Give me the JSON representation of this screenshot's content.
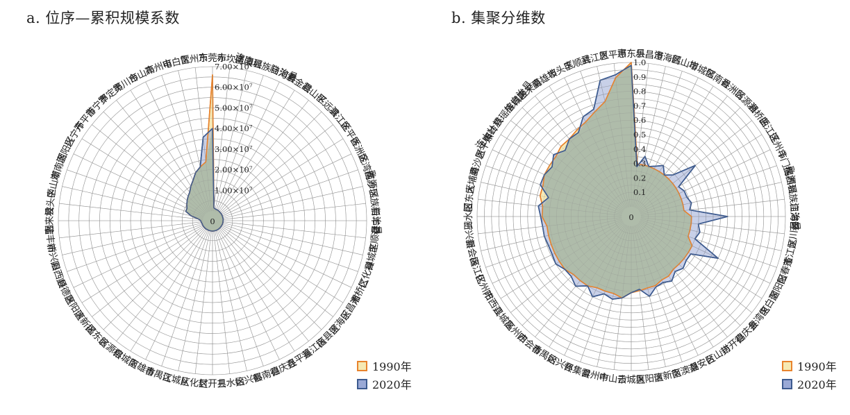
{
  "colors": {
    "s1990_line": "#e8832d",
    "s1990_fill": "#f6e9b3",
    "s2020_line": "#3c5a8f",
    "s2020_fill": "#9aa9d6",
    "overlap_fill": "#a8b8a0"
  },
  "legend": {
    "s1990": "1990年",
    "s2020": "2020年"
  },
  "chart_data": [
    {
      "type": "radar",
      "title": "a. 位序—累积规模系数",
      "center_label": "0",
      "rlim": [
        0,
        70000000
      ],
      "ticks": [
        "1.00×10⁷",
        "2.00×10⁷",
        "3.00×10⁷",
        "4.00×10⁷",
        "5.00×10⁷",
        "6.00×10⁷",
        "7.00×10⁷"
      ],
      "tick_values": [
        10000000,
        20000000,
        30000000,
        40000000,
        50000000,
        60000000,
        70000000
      ],
      "categories": [
        "东莞市",
        "赤坎区",
        "南澳县",
        "连南瑶族自治县",
        "陆河县",
        "紫金县",
        "霞山区",
        "平远县",
        "滨江区",
        "金平区",
        "香洲区",
        "金湾区",
        "南沙区",
        "乳源瑶族自治县",
        "新丰县",
        "丰顺县",
        "禅城区",
        "仁化县",
        "湘桥区",
        "乐昌市",
        "澄海区",
        "梅县区",
        "蓬江区",
        "连平县",
        "德庆县",
        "郁南县",
        "始兴县",
        "三水区",
        "封开县",
        "从化区",
        "江城区",
        "番禺区",
        "南雄市",
        "榕城区",
        "翁源县",
        "揭东区",
        "清新区",
        "惠阳区",
        "顺德区",
        "阳西县",
        "新兴县",
        "陆丰市",
        "惠来县",
        "坡头区",
        "中山市",
        "潮南区",
        "潮阳区",
        "兴宁市",
        "开平市",
        "普宁市",
        "罗定市",
        "吴川市",
        "台山市",
        "高州市",
        "电白区",
        "雷州市"
      ],
      "series": [
        {
          "name": "1990年",
          "values": [
            66000000,
            1500000,
            1200000,
            1000000,
            1000000,
            900000,
            800000,
            700000,
            700000,
            600000,
            600000,
            500000,
            500000,
            500000,
            400000,
            400000,
            400000,
            400000,
            300000,
            300000,
            300000,
            300000,
            300000,
            300000,
            300000,
            300000,
            300000,
            300000,
            300000,
            300000,
            300000,
            300000,
            300000,
            300000,
            400000,
            400000,
            400000,
            500000,
            500000,
            500000,
            600000,
            800000,
            1000000,
            2000000,
            6000000,
            9000000,
            9000000,
            10000000,
            11000000,
            12000000,
            13000000,
            15000000,
            17000000,
            20000000,
            22000000,
            24000000
          ]
        },
        {
          "name": "2020年",
          "values": [
            40000000,
            1500000,
            1200000,
            1000000,
            1000000,
            900000,
            800000,
            700000,
            700000,
            600000,
            600000,
            500000,
            500000,
            500000,
            400000,
            400000,
            400000,
            400000,
            300000,
            300000,
            300000,
            300000,
            300000,
            300000,
            300000,
            300000,
            300000,
            300000,
            300000,
            300000,
            300000,
            300000,
            300000,
            300000,
            400000,
            400000,
            400000,
            500000,
            500000,
            500000,
            600000,
            800000,
            1000000,
            2000000,
            6000000,
            9000000,
            9000000,
            10000000,
            11000000,
            12000000,
            13000000,
            15000000,
            17000000,
            20000000,
            22000000,
            36000000
          ]
        }
      ]
    },
    {
      "type": "radar",
      "title": "b. 集聚分维数",
      "center_label": "0",
      "rlim": [
        0,
        1.0
      ],
      "ticks": [
        "0.1",
        "0.2",
        "0.3",
        "0.4",
        "0.5",
        "0.6",
        "0.7",
        "0.8",
        "0.9",
        "1.0"
      ],
      "tick_values": [
        0.1,
        0.2,
        0.3,
        0.4,
        0.5,
        0.6,
        0.7,
        0.8,
        0.9,
        1.0
      ],
      "categories": [
        "惠东县",
        "乐昌市",
        "澄海区",
        "鹤山市",
        "增城区",
        "郁南县",
        "香洲区",
        "翁源县",
        "湘桥区",
        "曲江区",
        "连州市",
        "斗门区",
        "揭西县",
        "乳源瑶族自治县",
        "江海区",
        "龙川县",
        "蓬江区",
        "阳春市",
        "潮阳区",
        "电白区",
        "金湾区",
        "德庆县",
        "封开县",
        "台山市",
        "潮安区",
        "南澳县",
        "清新区",
        "惠阳区",
        "云城区",
        "中山市",
        "雷州市",
        "怀集县",
        "始兴县",
        "番禺区",
        "四会市",
        "高州市",
        "江城区",
        "阳西县",
        "化州市",
        "梅江区",
        "新会区",
        "新兴县",
        "三水区",
        "阳东区",
        "大埔县",
        "南沙区",
        "恩平市",
        "蕉岭县",
        "连山壮族瑶族自治县",
        "榕城区",
        "惠来县",
        "南雄市",
        "坡头区",
        "丰顺县",
        "武江区",
        "恩平市"
      ],
      "series": [
        {
          "name": "1990年",
          "values": [
            1.0,
            0.3,
            0.3,
            0.3,
            0.3,
            0.3,
            0.3,
            0.3,
            0.3,
            0.3,
            0.3,
            0.3,
            0.3,
            0.3,
            0.35,
            0.35,
            0.35,
            0.35,
            0.4,
            0.4,
            0.4,
            0.4,
            0.4,
            0.42,
            0.42,
            0.44,
            0.44,
            0.45,
            0.46,
            0.5,
            0.48,
            0.48,
            0.48,
            0.5,
            0.5,
            0.5,
            0.52,
            0.52,
            0.52,
            0.52,
            0.52,
            0.52,
            0.55,
            0.55,
            0.58,
            0.58,
            0.6,
            0.6,
            0.6,
            0.62,
            0.62,
            0.64,
            0.66,
            0.7,
            0.75,
            0.9
          ]
        },
        {
          "name": "2020年",
          "values": [
            0.98,
            0.28,
            0.36,
            0.3,
            0.32,
            0.35,
            0.3,
            0.34,
            0.5,
            0.32,
            0.34,
            0.34,
            0.36,
            0.34,
            0.6,
            0.4,
            0.42,
            0.4,
            0.6,
            0.42,
            0.42,
            0.44,
            0.42,
            0.46,
            0.44,
            0.45,
            0.5,
            0.44,
            0.46,
            0.5,
            0.52,
            0.5,
            0.55,
            0.5,
            0.55,
            0.52,
            0.52,
            0.55,
            0.54,
            0.54,
            0.55,
            0.55,
            0.56,
            0.58,
            0.52,
            0.6,
            0.6,
            0.58,
            0.62,
            0.58,
            0.62,
            0.62,
            0.7,
            0.72,
            0.9,
            0.92
          ]
        }
      ]
    }
  ]
}
